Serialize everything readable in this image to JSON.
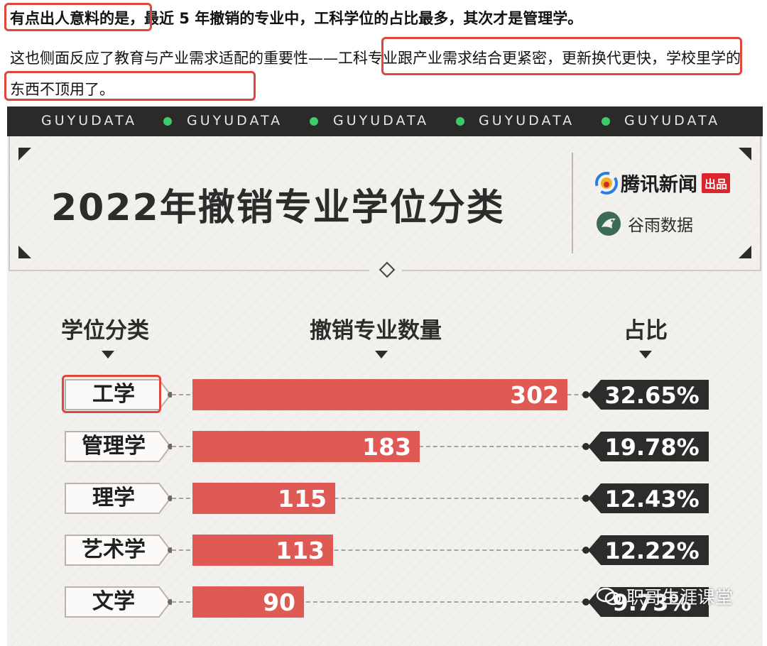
{
  "article": {
    "para1_highlight": "有点出人意料的是",
    "para1_rest": "，最近 5 年撤销的专业中，工科学位的占比最多，其次才是管理学。",
    "para2_start": "这也侧面反应了教育与产业需求适配的重要性——",
    "para2_highlight1": "工科专业跟产业需求结合更紧密，更新换代更",
    "para2_highlight2": "快，学校里学的东西不顶用了。"
  },
  "banner": {
    "items": [
      "GUYUDATA",
      "GUYUDATA",
      "GUYUDATA",
      "GUYUDATA",
      "GUYUDATA"
    ],
    "dot_color": "#3ecb6a"
  },
  "brands": {
    "tencent_news": "腾讯新闻",
    "tencent_badge": "出品",
    "guyu": "谷雨数据",
    "guyu_sub": "GUYUDATA"
  },
  "chart_data": {
    "type": "bar",
    "title": "2022年撤销专业学位分类",
    "column_headers": {
      "category": "学位分类",
      "count": "撤销专业数量",
      "share": "占比"
    },
    "categories": [
      "工学",
      "管理学",
      "理学",
      "艺术学",
      "文学"
    ],
    "values": [
      302,
      183,
      115,
      113,
      90
    ],
    "shares": [
      "32.65%",
      "19.78%",
      "12.43%",
      "12.22%",
      "9.73%"
    ],
    "highlighted_category": "工学",
    "bar_color": "#e05a55",
    "xlim": [
      0,
      302
    ]
  },
  "watermark": {
    "text": "职哥生涯课堂"
  }
}
